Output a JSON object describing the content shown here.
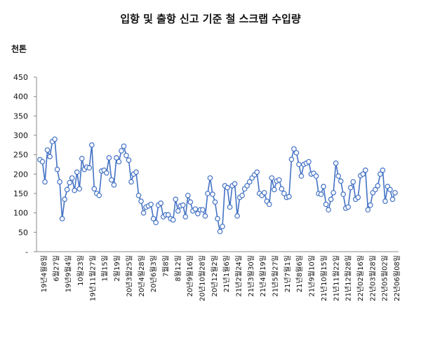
{
  "chart_data": {
    "type": "line",
    "title": "입항 및 출항 신고 기준 철 스크랩 수입량",
    "ylabel": "천톤",
    "ylim": [
      0,
      450
    ],
    "yticks": [
      "-",
      "50",
      "100",
      "150",
      "200",
      "250",
      "300",
      "350",
      "400",
      "450"
    ],
    "grid": false,
    "legend": "none",
    "line_color": "#4472c4",
    "marker_fill": "#ffffff",
    "x_tick_labels": [
      "19년4월8일",
      "6월27일",
      "19년9월4일",
      "10월23일",
      "19년11월27일",
      "1월15일",
      "2월19일",
      "20년3월25일",
      "20년4월28일",
      "20년6월3일",
      "7월8일",
      "8월12일",
      "20년9월16일",
      "20년10월28일",
      "20년12월2일",
      "21년1월6일",
      "21년2월24일",
      "21년3월30일",
      "21년4월19일",
      "21년5월27일",
      "21년7월1일",
      "21년8월6일",
      "21년9월10일",
      "21년10월15일",
      "21년11월22일",
      "21년12월28일",
      "22년02월16일",
      "22년03월28일",
      "22년05월02일",
      "22년06월08일"
    ],
    "values": [
      237,
      232,
      180,
      262,
      245,
      284,
      290,
      212,
      180,
      85,
      135,
      160,
      178,
      190,
      158,
      205,
      162,
      240,
      212,
      218,
      216,
      275,
      162,
      150,
      145,
      208,
      210,
      203,
      242,
      185,
      172,
      242,
      232,
      260,
      272,
      248,
      236,
      180,
      200,
      205,
      145,
      130,
      100,
      115,
      118,
      122,
      85,
      75,
      120,
      125,
      90,
      95,
      95,
      85,
      82,
      135,
      105,
      118,
      120,
      90,
      145,
      128,
      105,
      110,
      98,
      108,
      108,
      92,
      150,
      190,
      148,
      128,
      85,
      52,
      65,
      170,
      165,
      115,
      170,
      175,
      92,
      140,
      145,
      162,
      170,
      180,
      190,
      198,
      205,
      150,
      145,
      152,
      130,
      122,
      190,
      160,
      182,
      185,
      162,
      150,
      140,
      142,
      238,
      265,
      255,
      225,
      195,
      225,
      228,
      232,
      200,
      202,
      195,
      150,
      148,
      168,
      122,
      108,
      135,
      152,
      228,
      195,
      182,
      148,
      112,
      115,
      165,
      180,
      135,
      140,
      196,
      200,
      210,
      108,
      120,
      152,
      160,
      170,
      200,
      210,
      130,
      168,
      160,
      135,
      152
    ]
  }
}
